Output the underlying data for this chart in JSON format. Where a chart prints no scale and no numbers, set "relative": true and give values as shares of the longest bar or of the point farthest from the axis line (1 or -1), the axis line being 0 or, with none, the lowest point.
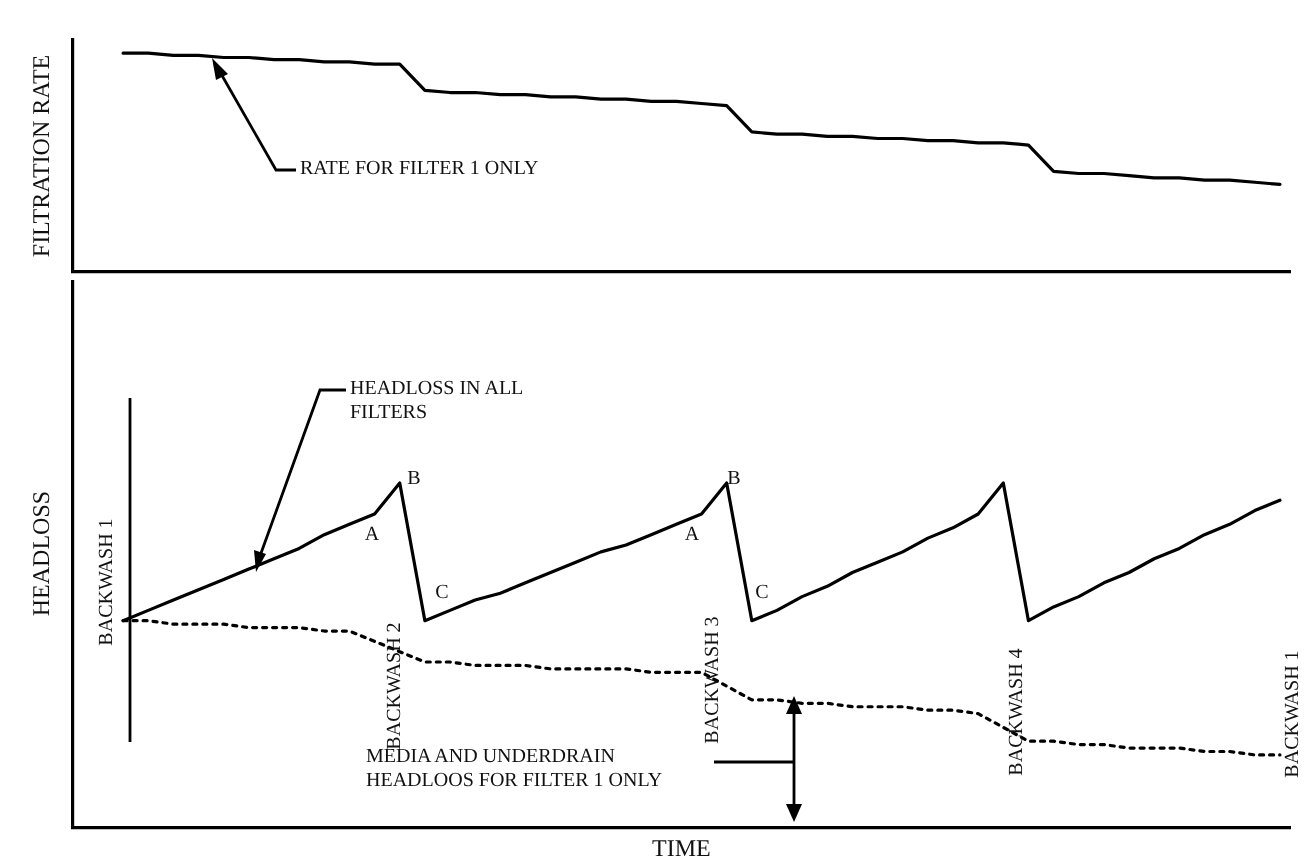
{
  "chart_data": [
    {
      "type": "line",
      "ylabel": "FILTRATION RATE",
      "relative": true,
      "legend": false,
      "tick_labels": false,
      "marker": "none",
      "grid": false,
      "categories": [
        null,
        null,
        null,
        null,
        null,
        null,
        null,
        null,
        null,
        null,
        null,
        null,
        null,
        null,
        null,
        null,
        null,
        null,
        null,
        null,
        null,
        null,
        null,
        null,
        null,
        null,
        null,
        null,
        null,
        null,
        null,
        null,
        null,
        null,
        null,
        null,
        null,
        null,
        null,
        null,
        null,
        null,
        null,
        null,
        null,
        null,
        null
      ],
      "series": [
        {
          "color": "#000000",
          "line_style": "solid",
          "values": [
            1.0,
            1.0,
            0.99,
            0.99,
            0.98,
            0.98,
            0.97,
            0.97,
            0.96,
            0.96,
            0.95,
            0.95,
            0.83,
            0.82,
            0.82,
            0.81,
            0.81,
            0.8,
            0.8,
            0.79,
            0.79,
            0.78,
            0.78,
            0.77,
            0.76,
            0.64,
            0.63,
            0.63,
            0.62,
            0.62,
            0.61,
            0.61,
            0.6,
            0.6,
            0.59,
            0.59,
            0.58,
            0.46,
            0.45,
            0.45,
            0.44,
            0.43,
            0.43,
            0.42,
            0.42,
            0.41,
            0.4
          ]
        }
      ],
      "annotations": [
        "RATE FOR FILTER 1 ONLY"
      ]
    },
    {
      "type": "line",
      "ylabel": "HEADLOSS",
      "xlabel": "TIME",
      "relative": true,
      "legend": false,
      "tick_labels": false,
      "marker": "none",
      "grid": false,
      "categories": [
        null,
        null,
        null,
        null,
        null,
        null,
        null,
        null,
        null,
        null,
        null,
        null,
        null,
        null,
        null,
        null,
        null,
        null,
        null,
        null,
        null,
        null,
        null,
        null,
        null,
        null,
        null,
        null,
        null,
        null,
        null,
        null,
        null,
        null,
        null,
        null,
        null,
        null,
        null,
        null,
        null,
        null,
        null,
        null,
        null,
        null,
        null
      ],
      "series": [
        {
          "color": "#000000",
          "line_style": "solid",
          "values": [
            0.6,
            0.63,
            0.66,
            0.69,
            0.72,
            0.75,
            0.78,
            0.81,
            0.85,
            0.88,
            0.91,
            1.0,
            0.6,
            0.63,
            0.66,
            0.68,
            0.71,
            0.74,
            0.77,
            0.8,
            0.82,
            0.85,
            0.88,
            0.91,
            1.0,
            0.6,
            0.63,
            0.67,
            0.7,
            0.74,
            0.77,
            0.8,
            0.84,
            0.87,
            0.91,
            1.0,
            0.6,
            0.64,
            0.67,
            0.71,
            0.74,
            0.78,
            0.81,
            0.85,
            0.88,
            0.92,
            0.95
          ]
        },
        {
          "color": "#000000",
          "line_style": "dotted",
          "values": [
            0.6,
            0.6,
            0.59,
            0.59,
            0.59,
            0.58,
            0.58,
            0.58,
            0.57,
            0.57,
            0.54,
            0.51,
            0.48,
            0.48,
            0.47,
            0.47,
            0.47,
            0.46,
            0.46,
            0.46,
            0.46,
            0.45,
            0.45,
            0.45,
            0.41,
            0.37,
            0.37,
            0.36,
            0.36,
            0.35,
            0.35,
            0.35,
            0.34,
            0.34,
            0.33,
            0.29,
            0.25,
            0.25,
            0.24,
            0.24,
            0.23,
            0.23,
            0.23,
            0.22,
            0.22,
            0.21,
            0.21
          ]
        }
      ],
      "annotations": [
        "HEADLOSS IN ALL FILTERS",
        "A",
        "B",
        "C",
        "A",
        "B",
        "C",
        "BACKWASH 1",
        "BACKWASH 2",
        "BACKWASH 3",
        "BACKWASH 4",
        "BACKWASH 1",
        "MEDIA AND UNDERDRAIN HEADLOOS FOR FILTER 1 ONLY"
      ]
    }
  ]
}
